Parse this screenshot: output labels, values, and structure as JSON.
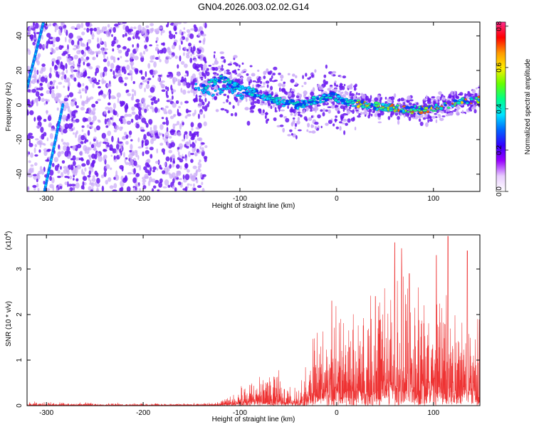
{
  "title": "GN04.2026.003.02.02.G14",
  "colors": {
    "snr_line": "#ee3333",
    "spectrogram_base": "#6a18f0",
    "spectrogram_faint": "#c9a8f8",
    "colorbar_stops": [
      "#ff2a8c",
      "#ff0000",
      "#ff9900",
      "#ffee00",
      "#66ff00",
      "#00ff88",
      "#00e5ff",
      "#0066ff",
      "#3300ff",
      "#9900ff",
      "#e8ccff",
      "#ffffff"
    ]
  },
  "chart_data": [
    {
      "type": "heatmap",
      "name": "spectrogram",
      "xlabel": "Height of straight line (km)",
      "ylabel": "Frequency (Hz)",
      "xlim": [
        -320,
        148
      ],
      "ylim": [
        -50,
        48
      ],
      "xticks": [
        -300,
        -200,
        -100,
        0,
        100
      ],
      "yticks": [
        -40,
        -20,
        0,
        20,
        40
      ],
      "colorbar": {
        "label": "Normalized spectral amplitude",
        "range": [
          0.0,
          0.82
        ],
        "ticks": [
          0.0,
          0.2,
          0.4,
          0.6,
          0.8
        ],
        "tick_labels": [
          "0.0",
          "0.2",
          "0.4",
          "0.6",
          "0.8"
        ]
      },
      "features": {
        "diffuse_region_x": [
          -320,
          -135
        ],
        "tone_track": [
          [
            -140,
            10
          ],
          [
            -120,
            15
          ],
          [
            -100,
            10
          ],
          [
            -80,
            6
          ],
          [
            -60,
            2
          ],
          [
            -40,
            0
          ],
          [
            -20,
            3
          ],
          [
            -5,
            5
          ],
          [
            10,
            2
          ],
          [
            30,
            0
          ],
          [
            60,
            -2
          ],
          [
            90,
            -3
          ],
          [
            110,
            -1
          ],
          [
            130,
            2
          ],
          [
            148,
            3
          ]
        ],
        "secondary_track": [
          [
            -148,
            12
          ],
          [
            -132,
            6
          ],
          [
            -112,
            10
          ],
          [
            -96,
            4
          ]
        ],
        "steep_tracks": [
          [
            [
              -320,
              10
            ],
            [
              -303,
              48
            ]
          ],
          [
            [
              -302,
              -50
            ],
            [
              -283,
              0
            ]
          ]
        ]
      }
    },
    {
      "type": "line",
      "name": "snr",
      "xlabel": "Height of straight line (km)",
      "ylabel": "SNR (10 * v/v)",
      "y_exponent": "(x10",
      "y_exponent_power": "4",
      "xlim": [
        -320,
        148
      ],
      "ylim": [
        0,
        3.75
      ],
      "xticks": [
        -300,
        -200,
        -100,
        0,
        100
      ],
      "yticks": [
        0,
        1,
        2,
        3
      ],
      "envelope": [
        [
          -320,
          0.1
        ],
        [
          -260,
          0.08
        ],
        [
          -200,
          0.06
        ],
        [
          -140,
          0.06
        ],
        [
          -120,
          0.1
        ],
        [
          -110,
          0.3
        ],
        [
          -100,
          0.5
        ],
        [
          -90,
          0.65
        ],
        [
          -80,
          0.8
        ],
        [
          -70,
          0.75
        ],
        [
          -60,
          0.8
        ],
        [
          -50,
          0.55
        ],
        [
          -40,
          0.45
        ],
        [
          -30,
          1.2
        ],
        [
          -20,
          2.0
        ],
        [
          -10,
          2.4
        ],
        [
          0,
          2.6
        ],
        [
          10,
          2.0
        ],
        [
          20,
          2.3
        ],
        [
          30,
          2.6
        ],
        [
          40,
          2.9
        ],
        [
          50,
          3.0
        ],
        [
          60,
          3.4
        ],
        [
          70,
          3.3
        ],
        [
          80,
          3.0
        ],
        [
          90,
          3.1
        ],
        [
          100,
          3.0
        ],
        [
          110,
          3.4
        ],
        [
          120,
          2.8
        ],
        [
          130,
          3.1
        ],
        [
          140,
          2.6
        ],
        [
          148,
          2.4
        ]
      ],
      "peaks": [
        [
          60,
          3.58
        ],
        [
          67,
          3.45
        ],
        [
          75,
          2.9
        ],
        [
          115,
          3.72
        ],
        [
          135,
          3.4
        ],
        [
          103,
          3.3
        ],
        [
          -5,
          2.3
        ],
        [
          40,
          2.4
        ]
      ]
    }
  ]
}
